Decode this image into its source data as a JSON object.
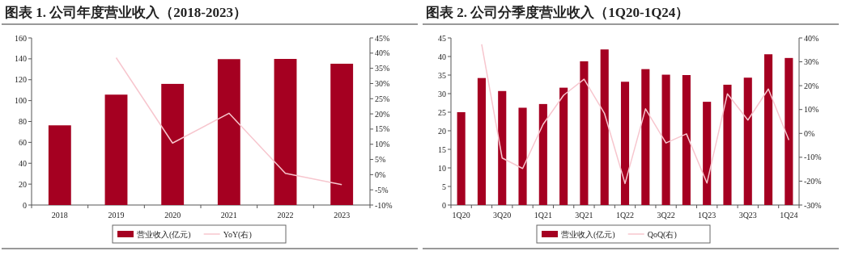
{
  "chart_data": [
    {
      "type": "bar",
      "title": "图表 1. 公司年度营业收入（2018-2023）",
      "categories": [
        "2018",
        "2019",
        "2020",
        "2021",
        "2022",
        "2023"
      ],
      "series": [
        {
          "name": "营业收入(亿元)",
          "color": "#a50021",
          "values": [
            76.3,
            105.7,
            116,
            139.7,
            139.9,
            135.3
          ]
        },
        {
          "name": "YoY(右)",
          "type": "line",
          "axis": "y2",
          "color": "#f7c6ce",
          "values": [
            null,
            38.5,
            10.4,
            20.2,
            0.4,
            -3.3
          ]
        }
      ],
      "ylim": [
        0,
        160
      ],
      "yticks": [
        0,
        20,
        40,
        60,
        80,
        100,
        120,
        140,
        160
      ],
      "y2lim": [
        -10,
        45
      ],
      "y2ticks": [
        {
          "value": -10,
          "label": "-10%"
        },
        {
          "value": -5,
          "label": "-5%"
        },
        {
          "value": 0,
          "label": "0%"
        },
        {
          "value": 5,
          "label": "5%"
        },
        {
          "value": 10,
          "label": "10%"
        },
        {
          "value": 15,
          "label": "15%"
        },
        {
          "value": 20,
          "label": "20%"
        },
        {
          "value": 25,
          "label": "25%"
        },
        {
          "value": 30,
          "label": "30%"
        },
        {
          "value": 35,
          "label": "35%"
        },
        {
          "value": 40,
          "label": "40%"
        },
        {
          "value": 45,
          "label": "45%"
        }
      ],
      "legend": "bottom"
    },
    {
      "type": "bar",
      "title": "图表 2. 公司分季度营业收入（1Q20-1Q24）",
      "categories": [
        "1Q20",
        null,
        "3Q20",
        null,
        "1Q21",
        null,
        "3Q21",
        null,
        "1Q22",
        null,
        "3Q22",
        null,
        "1Q23",
        null,
        "3Q23",
        null,
        "1Q24"
      ],
      "series": [
        {
          "name": "营业收入(亿元)",
          "color": "#a50021",
          "values": [
            25,
            34.2,
            30.7,
            26.2,
            27.2,
            31.6,
            38.7,
            41.9,
            33.2,
            36.6,
            35.1,
            35,
            27.8,
            32.4,
            34.3,
            40.6,
            39.6
          ]
        },
        {
          "name": "QoQ(右)",
          "type": "line",
          "axis": "y2",
          "color": "#f7c6ce",
          "values": [
            null,
            37.3,
            -10.3,
            -14.7,
            3.8,
            16,
            22.7,
            8.3,
            -21,
            10.3,
            -4,
            -0.2,
            -20.8,
            16.6,
            5.6,
            18.6,
            -2.8
          ]
        }
      ],
      "ylim": [
        0,
        45
      ],
      "yticks": [
        0,
        5,
        10,
        15,
        20,
        25,
        30,
        35,
        40,
        45
      ],
      "y2lim": [
        -30,
        40
      ],
      "y2ticks": [
        {
          "value": -30,
          "label": "-30%"
        },
        {
          "value": -20,
          "label": "-20%"
        },
        {
          "value": -10,
          "label": "-10%"
        },
        {
          "value": 0,
          "label": "0%"
        },
        {
          "value": 10,
          "label": "10%"
        },
        {
          "value": 20,
          "label": "20%"
        },
        {
          "value": 30,
          "label": "30%"
        },
        {
          "value": 40,
          "label": "40%"
        }
      ],
      "legend": "bottom"
    }
  ]
}
